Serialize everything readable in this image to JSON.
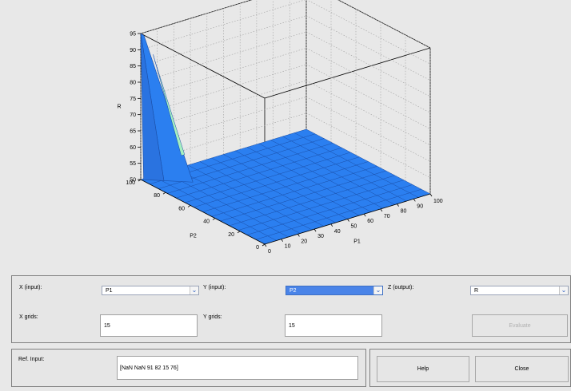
{
  "chart_data": {
    "type": "surface",
    "x_label": "P1",
    "y_label": "P2",
    "z_label": "R",
    "x_ticks": [
      "0",
      "10",
      "20",
      "30",
      "40",
      "50",
      "60",
      "70",
      "80",
      "90",
      "100"
    ],
    "y_ticks": [
      "0",
      "20",
      "40",
      "60",
      "80",
      "100"
    ],
    "z_ticks": [
      "50",
      "55",
      "60",
      "65",
      "70",
      "75",
      "80",
      "85",
      "90",
      "95"
    ],
    "xlim": [
      0,
      100
    ],
    "ylim": [
      0,
      100
    ],
    "zlim": [
      50,
      95
    ],
    "grid": true,
    "baseline_value": 50,
    "peak": {
      "P1": 0,
      "P2": 100,
      "R": 95
    },
    "surface_color": "#2b7ff0",
    "highlight_color": "#a6f0c0"
  },
  "controls": {
    "x_input_label": "X (input):",
    "x_input_value": "P1",
    "y_input_label": "Y (input):",
    "y_input_value": "P2",
    "z_output_label": "Z (output):",
    "z_output_value": "R",
    "x_grids_label": "X grids:",
    "x_grids_value": "15",
    "y_grids_label": "Y grids:",
    "y_grids_value": "15",
    "evaluate_label": "Evaluate"
  },
  "ref": {
    "label": "Ref. Input:",
    "value": "[NaN NaN 91 82 15 76]"
  },
  "buttons": {
    "help_label": "Help",
    "close_label": "Close"
  }
}
